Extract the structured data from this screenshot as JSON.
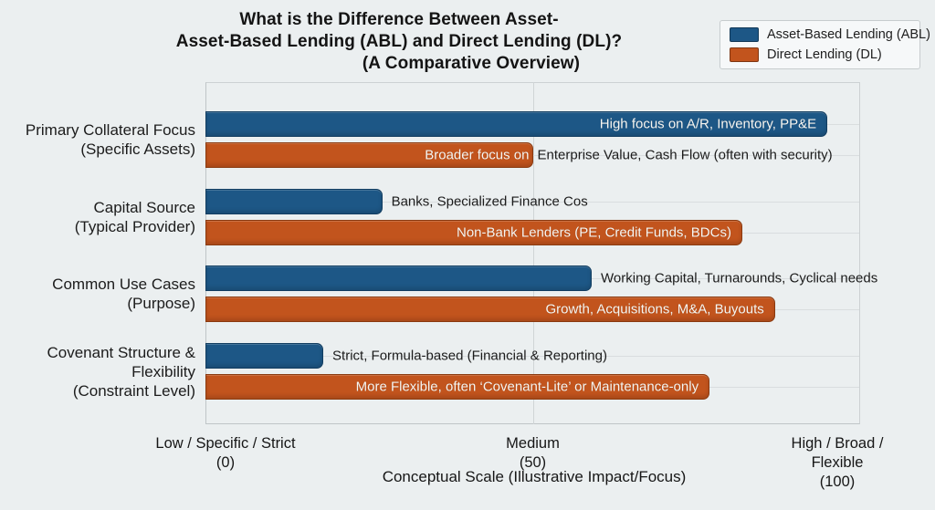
{
  "title": {
    "lines": [
      "What is the Difference Between Asset-",
      "Asset-Based Lending (ABL) and Direct Lending (DL)?",
      "(A Comparative Overview)"
    ]
  },
  "legend": {
    "items": [
      {
        "label": "Asset-Based Lending (ABL)",
        "color": "#1d5786"
      },
      {
        "label": "Direct Lending (DL)",
        "color": "#c2541d"
      }
    ]
  },
  "colors": {
    "background": "#ebeff0",
    "abl_bar": "#1d5786",
    "abl_border": "#123d60",
    "dl_bar": "#c2541d",
    "dl_border": "#8a3a10",
    "gridline": "#cfd4d6"
  },
  "chart_data": {
    "type": "bar",
    "orientation": "horizontal",
    "title": "What is the Difference Between Asset- Asset-Based Lending (ABL) and Direct Lending (DL)? (A Comparative Overview)",
    "categories": [
      [
        "Primary Collateral Focus",
        "(Specific Assets)"
      ],
      [
        "Capital Source",
        "(Typical Provider)"
      ],
      [
        "Common Use Cases",
        "(Purpose)"
      ],
      [
        "Covenant Structure &",
        "Flexibility",
        "(Constraint Level)"
      ]
    ],
    "series": [
      {
        "name": "Asset-Based Lending (ABL)",
        "color": "#1d5786",
        "border_color": "#123d60",
        "values": [
          95,
          27,
          59,
          18
        ],
        "bar_labels": [
          {
            "inside": "High focus on A/R, Inventory, PP&E",
            "outside": ""
          },
          {
            "inside": "",
            "outside": "Banks, Specialized Finance Cos"
          },
          {
            "inside": "",
            "outside": "Working Capital, Turnarounds, Cyclical needs"
          },
          {
            "inside": "",
            "outside": "Strict, Formula-based (Financial & Reporting)"
          }
        ]
      },
      {
        "name": "Direct Lending (DL)",
        "color": "#c2541d",
        "border_color": "#8a3a10",
        "values": [
          50,
          82,
          87,
          77
        ],
        "bar_labels": [
          {
            "inside": "Broader focus on",
            "outside": "Enterprise Value, Cash Flow (often with security)"
          },
          {
            "inside": "Non-Bank Lenders (PE, Credit Funds, BDCs)",
            "outside": ""
          },
          {
            "inside": "Growth, Acquisitions, M&A, Buyouts",
            "outside": ""
          },
          {
            "inside": "More Flexible, often ‘Covenant-Lite’ or Maintenance-only",
            "outside": ""
          }
        ]
      }
    ],
    "xlabel": "Conceptual Scale (Illustrative Impact/Focus)",
    "xlim": [
      0,
      100
    ],
    "xticks": [
      {
        "value": 0,
        "lines": [
          "Low / Specific / Strict",
          "(0)"
        ]
      },
      {
        "value": 50,
        "lines": [
          "Medium",
          "(50)"
        ]
      },
      {
        "value": 100,
        "lines": [
          "High / Broad / Flexible",
          "(100)"
        ]
      }
    ],
    "grid": "vertical-at-ticks",
    "legend_position": "top-right"
  }
}
